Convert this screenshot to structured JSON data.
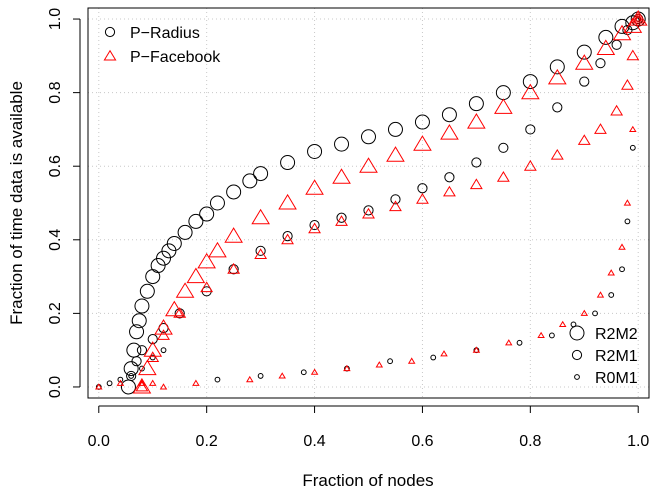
{
  "chart_data": {
    "type": "scatter",
    "title": "",
    "xlabel": "Fraction of nodes",
    "ylabel": "Fraction of time data is available",
    "xlim": [
      -0.02,
      1.02
    ],
    "ylim": [
      -0.03,
      1.03
    ],
    "xticks": [
      0.0,
      0.2,
      0.4,
      0.6,
      0.8,
      1.0
    ],
    "xtick_labels": [
      "0.0",
      "0.2",
      "0.4",
      "0.6",
      "0.8",
      "1.0"
    ],
    "yticks": [
      0.0,
      0.2,
      0.4,
      0.6,
      0.8,
      1.0
    ],
    "ytick_labels": [
      "0.0",
      "0.2",
      "0.4",
      "0.6",
      "0.8",
      "1.0"
    ],
    "grid": true,
    "legend_color": {
      "position": "top-left",
      "entries": [
        {
          "label": "P−Radius",
          "color": "#000000",
          "marker": "circle"
        },
        {
          "label": "P−Facebook",
          "color": "#ff0000",
          "marker": "triangle"
        }
      ]
    },
    "legend_size": {
      "position": "bottom-right",
      "entries": [
        {
          "label": "R2M2",
          "size": "large"
        },
        {
          "label": "R2M1",
          "size": "medium"
        },
        {
          "label": "R0M1",
          "size": "small"
        }
      ]
    },
    "series": [
      {
        "group": "P-Radius",
        "config": "R2M2",
        "color": "#000000",
        "marker": "circle",
        "size": "large",
        "x": [
          0.055,
          0.06,
          0.065,
          0.07,
          0.075,
          0.08,
          0.09,
          0.1,
          0.11,
          0.12,
          0.13,
          0.14,
          0.16,
          0.18,
          0.2,
          0.22,
          0.25,
          0.28,
          0.3,
          0.35,
          0.4,
          0.45,
          0.5,
          0.55,
          0.6,
          0.65,
          0.7,
          0.75,
          0.8,
          0.85,
          0.9,
          0.94,
          0.97,
          0.99,
          1.0
        ],
        "y": [
          0.0,
          0.05,
          0.1,
          0.15,
          0.18,
          0.22,
          0.26,
          0.3,
          0.33,
          0.35,
          0.37,
          0.39,
          0.42,
          0.45,
          0.47,
          0.5,
          0.53,
          0.56,
          0.58,
          0.61,
          0.64,
          0.66,
          0.68,
          0.7,
          0.72,
          0.74,
          0.77,
          0.8,
          0.83,
          0.87,
          0.91,
          0.95,
          0.98,
          0.99,
          1.0
        ]
      },
      {
        "group": "P-Radius",
        "config": "R2M1",
        "color": "#000000",
        "marker": "circle",
        "size": "medium",
        "x": [
          0.06,
          0.07,
          0.08,
          0.1,
          0.12,
          0.15,
          0.2,
          0.25,
          0.3,
          0.35,
          0.4,
          0.45,
          0.5,
          0.55,
          0.6,
          0.65,
          0.7,
          0.75,
          0.8,
          0.85,
          0.9,
          0.93,
          0.96,
          0.98,
          1.0
        ],
        "y": [
          0.03,
          0.07,
          0.1,
          0.13,
          0.16,
          0.2,
          0.26,
          0.32,
          0.37,
          0.41,
          0.44,
          0.46,
          0.48,
          0.51,
          0.54,
          0.57,
          0.61,
          0.65,
          0.7,
          0.76,
          0.83,
          0.88,
          0.93,
          0.97,
          1.0
        ]
      },
      {
        "group": "P-Radius",
        "config": "R0M1",
        "color": "#000000",
        "marker": "circle",
        "size": "small",
        "x": [
          0.0,
          0.02,
          0.04,
          0.06,
          0.08,
          0.1,
          0.12,
          0.22,
          0.3,
          0.38,
          0.46,
          0.54,
          0.62,
          0.7,
          0.78,
          0.84,
          0.88,
          0.92,
          0.95,
          0.97,
          0.98,
          0.99,
          1.0
        ],
        "y": [
          0.0,
          0.01,
          0.02,
          0.03,
          0.05,
          0.08,
          0.1,
          0.02,
          0.03,
          0.04,
          0.05,
          0.07,
          0.08,
          0.1,
          0.12,
          0.14,
          0.17,
          0.2,
          0.25,
          0.32,
          0.45,
          0.65,
          1.0
        ]
      },
      {
        "group": "P-Facebook",
        "config": "R2M2",
        "color": "#ff0000",
        "marker": "triangle",
        "size": "large",
        "x": [
          0.08,
          0.09,
          0.1,
          0.12,
          0.14,
          0.16,
          0.18,
          0.2,
          0.22,
          0.25,
          0.3,
          0.35,
          0.4,
          0.45,
          0.5,
          0.55,
          0.6,
          0.65,
          0.7,
          0.75,
          0.8,
          0.85,
          0.9,
          0.94,
          0.97,
          0.99,
          1.0
        ],
        "y": [
          0.0,
          0.05,
          0.1,
          0.16,
          0.21,
          0.26,
          0.3,
          0.34,
          0.37,
          0.41,
          0.46,
          0.5,
          0.54,
          0.57,
          0.6,
          0.63,
          0.66,
          0.69,
          0.72,
          0.76,
          0.8,
          0.84,
          0.88,
          0.92,
          0.96,
          0.98,
          1.0
        ]
      },
      {
        "group": "P-Facebook",
        "config": "R2M1",
        "color": "#ff0000",
        "marker": "triangle",
        "size": "medium",
        "x": [
          0.08,
          0.1,
          0.12,
          0.15,
          0.2,
          0.25,
          0.3,
          0.35,
          0.4,
          0.45,
          0.5,
          0.55,
          0.6,
          0.65,
          0.7,
          0.75,
          0.8,
          0.85,
          0.9,
          0.93,
          0.96,
          0.98,
          0.99,
          1.0
        ],
        "y": [
          0.0,
          0.08,
          0.14,
          0.2,
          0.27,
          0.32,
          0.36,
          0.4,
          0.43,
          0.45,
          0.47,
          0.49,
          0.51,
          0.53,
          0.55,
          0.57,
          0.6,
          0.63,
          0.67,
          0.7,
          0.75,
          0.82,
          0.9,
          1.0
        ]
      },
      {
        "group": "P-Facebook",
        "config": "R0M1",
        "color": "#ff0000",
        "marker": "triangle",
        "size": "small",
        "x": [
          0.0,
          0.04,
          0.08,
          0.1,
          0.12,
          0.18,
          0.28,
          0.34,
          0.4,
          0.46,
          0.52,
          0.58,
          0.64,
          0.7,
          0.76,
          0.82,
          0.86,
          0.9,
          0.93,
          0.95,
          0.97,
          0.98,
          0.99,
          1.0
        ],
        "y": [
          0.0,
          0.01,
          0.01,
          0.01,
          0.0,
          0.01,
          0.02,
          0.03,
          0.04,
          0.05,
          0.06,
          0.07,
          0.09,
          0.1,
          0.12,
          0.14,
          0.17,
          0.2,
          0.25,
          0.31,
          0.38,
          0.5,
          0.7,
          1.0
        ]
      }
    ]
  }
}
